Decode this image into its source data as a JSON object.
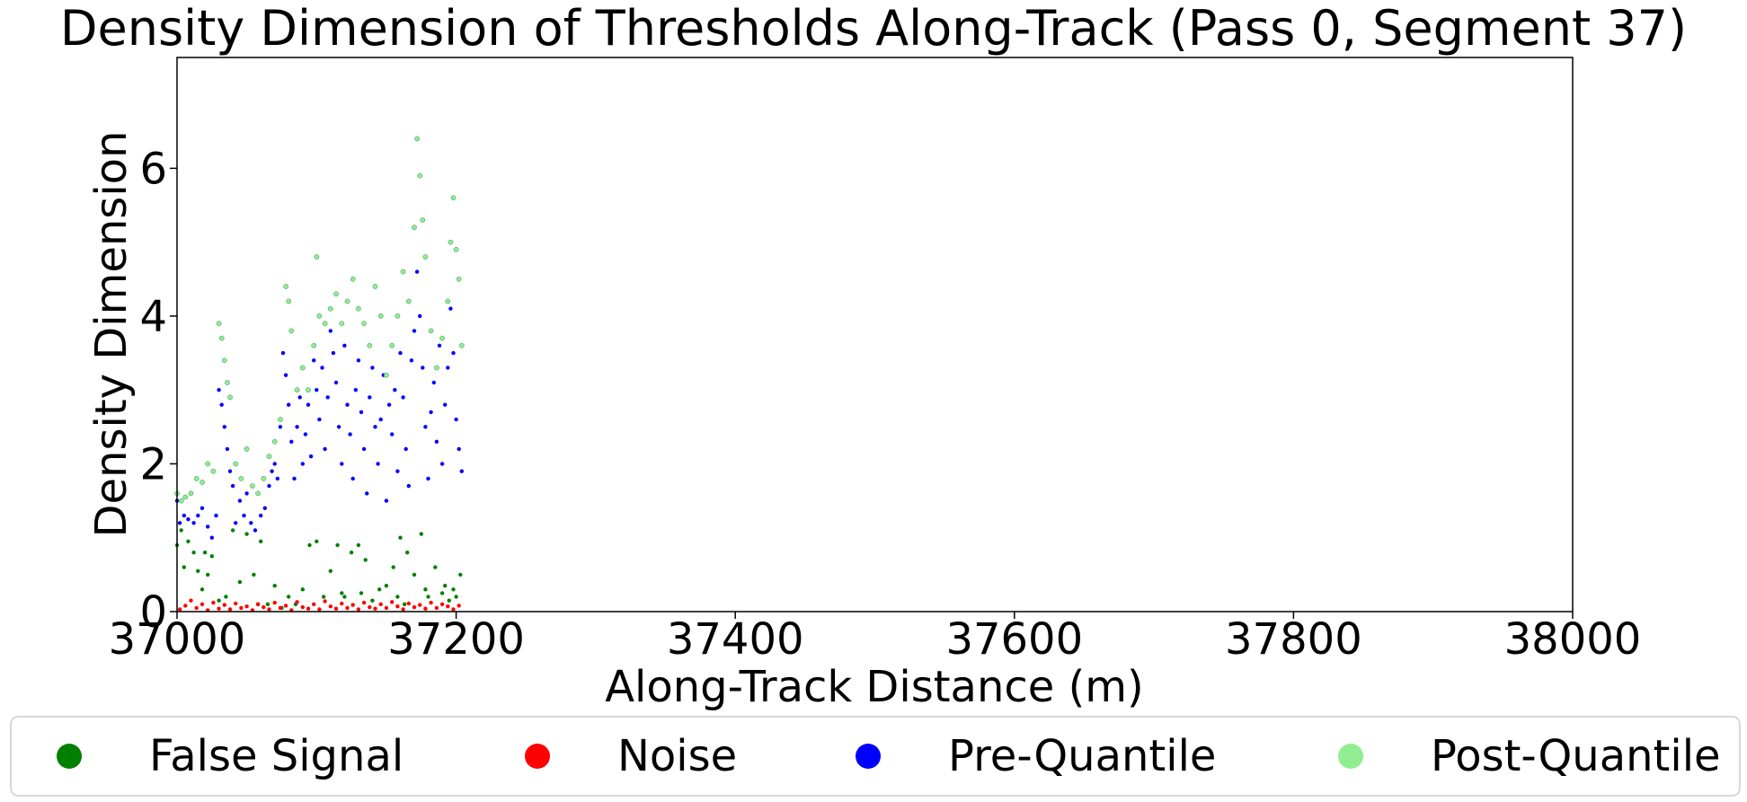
{
  "chart_data": {
    "type": "scatter",
    "title": "Density Dimension of Thresholds Along-Track (Pass 0, Segment 37)",
    "xlabel": "Along-Track Distance (m)",
    "ylabel": "Density Dimension",
    "xlim": [
      37000,
      38000
    ],
    "ylim": [
      0,
      7.5
    ],
    "xticks": [
      "37000",
      "37200",
      "37400",
      "37600",
      "37800",
      "38000"
    ],
    "yticks": [
      "0",
      "2",
      "4",
      "6"
    ],
    "grid": false,
    "legend_position": "bottom",
    "data_extent_x": [
      37000,
      37205
    ],
    "series": [
      {
        "name": "False Signal",
        "color": "#008000",
        "points": [
          [
            37000,
            0.9
          ],
          [
            37003,
            1.1
          ],
          [
            37005,
            0.6
          ],
          [
            37008,
            0.95
          ],
          [
            37012,
            0.8
          ],
          [
            37015,
            0.55
          ],
          [
            37018,
            0.3
          ],
          [
            37020,
            0.8
          ],
          [
            37022,
            0.5
          ],
          [
            37025,
            0.75
          ],
          [
            37030,
            0.15
          ],
          [
            37035,
            0.2
          ],
          [
            37040,
            1.1
          ],
          [
            37045,
            0.4
          ],
          [
            37050,
            1.05
          ],
          [
            37055,
            0.5
          ],
          [
            37058,
            0.1
          ],
          [
            37060,
            0.95
          ],
          [
            37065,
            0.1
          ],
          [
            37070,
            0.35
          ],
          [
            37075,
            0.05
          ],
          [
            37080,
            0.2
          ],
          [
            37085,
            0.1
          ],
          [
            37090,
            0.3
          ],
          [
            37095,
            0.9
          ],
          [
            37100,
            0.95
          ],
          [
            37105,
            0.2
          ],
          [
            37110,
            0.55
          ],
          [
            37115,
            0.9
          ],
          [
            37118,
            0.25
          ],
          [
            37120,
            0.2
          ],
          [
            37125,
            0.8
          ],
          [
            37130,
            0.9
          ],
          [
            37132,
            0.25
          ],
          [
            37135,
            0.7
          ],
          [
            37140,
            0.15
          ],
          [
            37145,
            0.3
          ],
          [
            37150,
            0.35
          ],
          [
            37155,
            0.6
          ],
          [
            37158,
            0.2
          ],
          [
            37160,
            1.0
          ],
          [
            37163,
            0.1
          ],
          [
            37165,
            0.8
          ],
          [
            37170,
            0.5
          ],
          [
            37175,
            1.05
          ],
          [
            37178,
            0.3
          ],
          [
            37180,
            0.2
          ],
          [
            37185,
            0.6
          ],
          [
            37190,
            0.25
          ],
          [
            37192,
            0.35
          ],
          [
            37195,
            0.15
          ],
          [
            37198,
            0.3
          ],
          [
            37200,
            0.2
          ],
          [
            37203,
            0.5
          ]
        ]
      },
      {
        "name": "Noise",
        "color": "#ff0000",
        "points": [
          [
            37002,
            0.03
          ],
          [
            37006,
            0.08
          ],
          [
            37010,
            0.15
          ],
          [
            37014,
            0.05
          ],
          [
            37018,
            0.1
          ],
          [
            37022,
            0.02
          ],
          [
            37026,
            0.12
          ],
          [
            37030,
            0.04
          ],
          [
            37034,
            0.09
          ],
          [
            37038,
            0.03
          ],
          [
            37042,
            0.11
          ],
          [
            37046,
            0.05
          ],
          [
            37050,
            0.07
          ],
          [
            37054,
            0.02
          ],
          [
            37058,
            0.1
          ],
          [
            37062,
            0.06
          ],
          [
            37066,
            0.03
          ],
          [
            37070,
            0.12
          ],
          [
            37074,
            0.05
          ],
          [
            37078,
            0.08
          ],
          [
            37082,
            0.02
          ],
          [
            37086,
            0.13
          ],
          [
            37090,
            0.06
          ],
          [
            37094,
            0.04
          ],
          [
            37098,
            0.1
          ],
          [
            37102,
            0.03
          ],
          [
            37106,
            0.14
          ],
          [
            37110,
            0.07
          ],
          [
            37114,
            0.04
          ],
          [
            37118,
            0.11
          ],
          [
            37122,
            0.05
          ],
          [
            37126,
            0.09
          ],
          [
            37130,
            0.03
          ],
          [
            37134,
            0.12
          ],
          [
            37138,
            0.06
          ],
          [
            37142,
            0.04
          ],
          [
            37146,
            0.1
          ],
          [
            37150,
            0.05
          ],
          [
            37154,
            0.13
          ],
          [
            37158,
            0.07
          ],
          [
            37162,
            0.03
          ],
          [
            37166,
            0.11
          ],
          [
            37170,
            0.06
          ],
          [
            37174,
            0.09
          ],
          [
            37178,
            0.04
          ],
          [
            37182,
            0.12
          ],
          [
            37186,
            0.05
          ],
          [
            37190,
            0.1
          ],
          [
            37194,
            0.07
          ],
          [
            37198,
            0.03
          ],
          [
            37202,
            0.08
          ]
        ]
      },
      {
        "name": "Pre-Quantile",
        "color": "#0000ff",
        "points": [
          [
            37000,
            1.5
          ],
          [
            37002,
            1.2
          ],
          [
            37005,
            1.3
          ],
          [
            37008,
            1.25
          ],
          [
            37012,
            1.2
          ],
          [
            37015,
            1.3
          ],
          [
            37018,
            1.4
          ],
          [
            37022,
            1.15
          ],
          [
            37025,
            1.0
          ],
          [
            37028,
            1.3
          ],
          [
            37030,
            3.0
          ],
          [
            37032,
            2.8
          ],
          [
            37034,
            2.5
          ],
          [
            37036,
            2.2
          ],
          [
            37038,
            1.9
          ],
          [
            37040,
            1.7
          ],
          [
            37042,
            1.2
          ],
          [
            37045,
            1.5
          ],
          [
            37048,
            1.3
          ],
          [
            37050,
            1.6
          ],
          [
            37053,
            1.2
          ],
          [
            37056,
            1.1
          ],
          [
            37060,
            1.3
          ],
          [
            37063,
            1.4
          ],
          [
            37066,
            1.7
          ],
          [
            37068,
            1.9
          ],
          [
            37070,
            2.0
          ],
          [
            37072,
            1.8
          ],
          [
            37074,
            2.5
          ],
          [
            37076,
            3.5
          ],
          [
            37078,
            3.2
          ],
          [
            37080,
            2.8
          ],
          [
            37082,
            2.3
          ],
          [
            37084,
            1.8
          ],
          [
            37086,
            2.5
          ],
          [
            37088,
            2.9
          ],
          [
            37090,
            2.0
          ],
          [
            37092,
            2.4
          ],
          [
            37094,
            2.8
          ],
          [
            37096,
            2.1
          ],
          [
            37098,
            3.4
          ],
          [
            37100,
            3.0
          ],
          [
            37102,
            2.6
          ],
          [
            37104,
            3.3
          ],
          [
            37106,
            2.2
          ],
          [
            37108,
            2.9
          ],
          [
            37110,
            3.8
          ],
          [
            37112,
            3.5
          ],
          [
            37114,
            3.1
          ],
          [
            37116,
            2.5
          ],
          [
            37118,
            2.0
          ],
          [
            37120,
            3.6
          ],
          [
            37122,
            2.8
          ],
          [
            37124,
            2.4
          ],
          [
            37126,
            1.8
          ],
          [
            37128,
            3.0
          ],
          [
            37130,
            3.4
          ],
          [
            37132,
            2.7
          ],
          [
            37134,
            2.2
          ],
          [
            37136,
            1.6
          ],
          [
            37138,
            2.9
          ],
          [
            37140,
            3.3
          ],
          [
            37142,
            2.5
          ],
          [
            37144,
            2.0
          ],
          [
            37146,
            2.6
          ],
          [
            37148,
            3.2
          ],
          [
            37150,
            1.5
          ],
          [
            37152,
            2.8
          ],
          [
            37154,
            2.4
          ],
          [
            37156,
            3.0
          ],
          [
            37158,
            1.9
          ],
          [
            37160,
            3.5
          ],
          [
            37162,
            2.9
          ],
          [
            37164,
            2.2
          ],
          [
            37166,
            1.7
          ],
          [
            37168,
            3.4
          ],
          [
            37170,
            3.8
          ],
          [
            37172,
            4.6
          ],
          [
            37174,
            4.0
          ],
          [
            37176,
            3.3
          ],
          [
            37178,
            2.5
          ],
          [
            37180,
            1.8
          ],
          [
            37182,
            2.7
          ],
          [
            37184,
            3.1
          ],
          [
            37186,
            2.3
          ],
          [
            37188,
            3.6
          ],
          [
            37190,
            2.0
          ],
          [
            37192,
            2.8
          ],
          [
            37194,
            3.3
          ],
          [
            37196,
            4.1
          ],
          [
            37198,
            3.5
          ],
          [
            37200,
            2.6
          ],
          [
            37202,
            2.2
          ],
          [
            37204,
            1.9
          ]
        ]
      },
      {
        "name": "Post-Quantile",
        "color": "#90ee90",
        "points": [
          [
            37000,
            1.6
          ],
          [
            37003,
            1.5
          ],
          [
            37006,
            1.55
          ],
          [
            37010,
            1.6
          ],
          [
            37014,
            1.8
          ],
          [
            37018,
            1.75
          ],
          [
            37022,
            2.0
          ],
          [
            37026,
            1.9
          ],
          [
            37030,
            3.9
          ],
          [
            37032,
            3.7
          ],
          [
            37034,
            3.4
          ],
          [
            37036,
            3.1
          ],
          [
            37038,
            2.9
          ],
          [
            37042,
            2.0
          ],
          [
            37046,
            1.8
          ],
          [
            37050,
            2.2
          ],
          [
            37054,
            1.7
          ],
          [
            37058,
            1.6
          ],
          [
            37062,
            1.8
          ],
          [
            37066,
            2.1
          ],
          [
            37070,
            2.3
          ],
          [
            37074,
            2.6
          ],
          [
            37078,
            4.4
          ],
          [
            37080,
            4.2
          ],
          [
            37082,
            3.8
          ],
          [
            37086,
            3.0
          ],
          [
            37090,
            3.3
          ],
          [
            37094,
            3.0
          ],
          [
            37098,
            3.6
          ],
          [
            37100,
            4.8
          ],
          [
            37102,
            4.0
          ],
          [
            37106,
            3.9
          ],
          [
            37110,
            4.1
          ],
          [
            37114,
            4.3
          ],
          [
            37118,
            3.9
          ],
          [
            37122,
            4.2
          ],
          [
            37126,
            4.5
          ],
          [
            37130,
            4.1
          ],
          [
            37134,
            3.9
          ],
          [
            37138,
            3.6
          ],
          [
            37142,
            4.4
          ],
          [
            37146,
            4.0
          ],
          [
            37150,
            3.2
          ],
          [
            37154,
            3.6
          ],
          [
            37158,
            4.0
          ],
          [
            37162,
            4.6
          ],
          [
            37166,
            4.2
          ],
          [
            37170,
            5.2
          ],
          [
            37172,
            6.4
          ],
          [
            37174,
            5.9
          ],
          [
            37176,
            5.3
          ],
          [
            37178,
            4.8
          ],
          [
            37182,
            3.8
          ],
          [
            37186,
            3.3
          ],
          [
            37190,
            3.7
          ],
          [
            37194,
            4.2
          ],
          [
            37196,
            5.0
          ],
          [
            37198,
            5.6
          ],
          [
            37200,
            4.9
          ],
          [
            37202,
            4.5
          ],
          [
            37204,
            3.6
          ]
        ]
      }
    ]
  }
}
